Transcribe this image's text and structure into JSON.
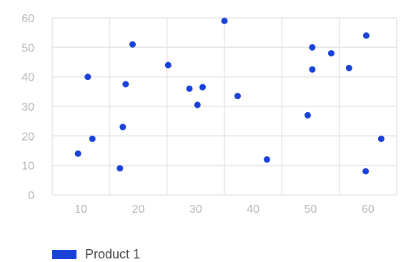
{
  "chart_data": {
    "type": "scatter",
    "title": "",
    "xlabel": "",
    "ylabel": "",
    "xlim": [
      5,
      65
    ],
    "ylim": [
      0,
      60
    ],
    "x_ticks": [
      10,
      20,
      30,
      40,
      50,
      60
    ],
    "y_ticks": [
      0,
      10,
      20,
      30,
      40,
      50,
      60
    ],
    "grid": true,
    "legend_position": "bottom-left",
    "series": [
      {
        "name": "Product 1",
        "color": "#1741d9",
        "points": [
          {
            "x": 9.5,
            "y": 14
          },
          {
            "x": 11.2,
            "y": 40
          },
          {
            "x": 12.0,
            "y": 19
          },
          {
            "x": 16.8,
            "y": 9
          },
          {
            "x": 17.3,
            "y": 23
          },
          {
            "x": 17.8,
            "y": 37.5
          },
          {
            "x": 19.0,
            "y": 51
          },
          {
            "x": 25.2,
            "y": 44
          },
          {
            "x": 28.9,
            "y": 36
          },
          {
            "x": 30.3,
            "y": 30.5
          },
          {
            "x": 31.2,
            "y": 36.5
          },
          {
            "x": 35.0,
            "y": 59
          },
          {
            "x": 37.3,
            "y": 33.5
          },
          {
            "x": 42.4,
            "y": 12
          },
          {
            "x": 49.5,
            "y": 27
          },
          {
            "x": 50.3,
            "y": 42.5
          },
          {
            "x": 50.3,
            "y": 50
          },
          {
            "x": 53.6,
            "y": 48
          },
          {
            "x": 56.7,
            "y": 43
          },
          {
            "x": 59.7,
            "y": 54
          },
          {
            "x": 59.6,
            "y": 8
          },
          {
            "x": 62.3,
            "y": 19
          }
        ]
      }
    ]
  }
}
